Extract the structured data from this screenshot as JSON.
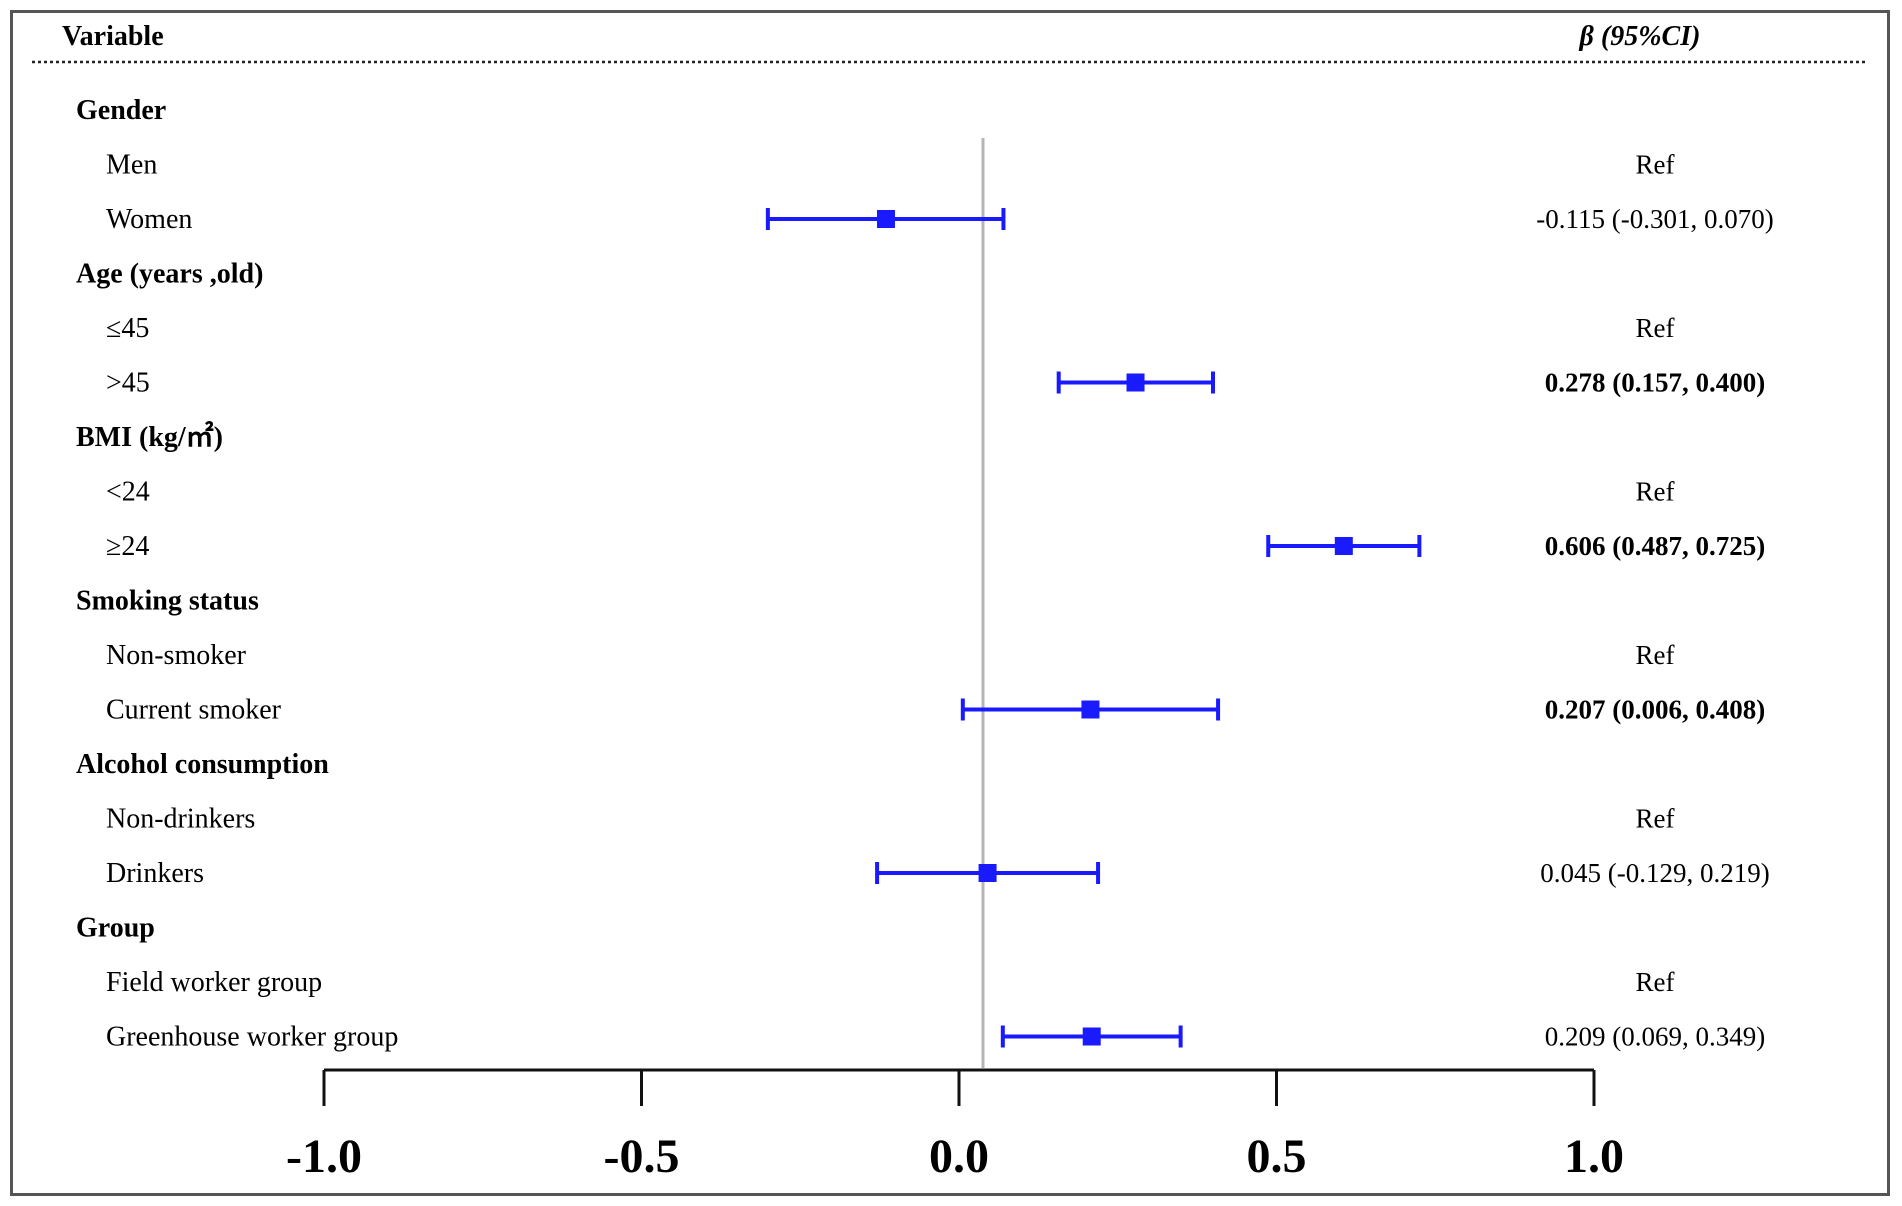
{
  "header": {
    "variable_label": "Variable",
    "beta_label": "β (95%CI)"
  },
  "rows": [
    {
      "label": "Gender",
      "heading": true
    },
    {
      "label": "Men",
      "value_text": "Ref"
    },
    {
      "label": "Women",
      "value_text": "-0.115 (-0.301, 0.070)",
      "bold": false
    },
    {
      "label": "Age (years ,old)",
      "heading": true
    },
    {
      "label": "≤45",
      "value_text": "Ref"
    },
    {
      "label": ">45",
      "value_text": "0.278 (0.157, 0.400)",
      "bold": true
    },
    {
      "label": "BMI (kg/㎡)",
      "heading": true
    },
    {
      "label": "<24",
      "value_text": "Ref"
    },
    {
      "label": "≥24",
      "value_text": "0.606 (0.487, 0.725)",
      "bold": true
    },
    {
      "label": "Smoking status",
      "heading": true
    },
    {
      "label": "Non-smoker",
      "value_text": "Ref"
    },
    {
      "label": "Current smoker",
      "value_text": "0.207 (0.006, 0.408)",
      "bold": true
    },
    {
      "label": "Alcohol consumption",
      "heading": true
    },
    {
      "label": "Non-drinkers",
      "value_text": "Ref"
    },
    {
      "label": "Drinkers",
      "value_text": "0.045 (-0.129, 0.219)",
      "bold": false
    },
    {
      "label": "Group",
      "heading": true
    },
    {
      "label": "Field worker group",
      "value_text": "Ref"
    },
    {
      "label": "Greenhouse worker group",
      "value_text": "0.209 (0.069, 0.349)",
      "bold": false
    }
  ],
  "chart_data": {
    "type": "forest",
    "xlim": [
      -1.0,
      1.0
    ],
    "x_ticks": [
      "-1.0",
      "-0.5",
      "0.0",
      "0.5",
      "1.0"
    ],
    "reference_line": 0.0,
    "points": [
      {
        "row": 2,
        "beta": -0.115,
        "lower": -0.301,
        "upper": 0.07
      },
      {
        "row": 5,
        "beta": 0.278,
        "lower": 0.157,
        "upper": 0.4
      },
      {
        "row": 8,
        "beta": 0.606,
        "lower": 0.487,
        "upper": 0.725
      },
      {
        "row": 11,
        "beta": 0.207,
        "lower": 0.006,
        "upper": 0.408
      },
      {
        "row": 14,
        "beta": 0.045,
        "lower": -0.129,
        "upper": 0.219
      },
      {
        "row": 17,
        "beta": 0.209,
        "lower": 0.069,
        "upper": 0.349
      }
    ],
    "colors": {
      "point": "#1a1aff",
      "reference": "#b5b5b5",
      "axis": "#111111"
    }
  }
}
